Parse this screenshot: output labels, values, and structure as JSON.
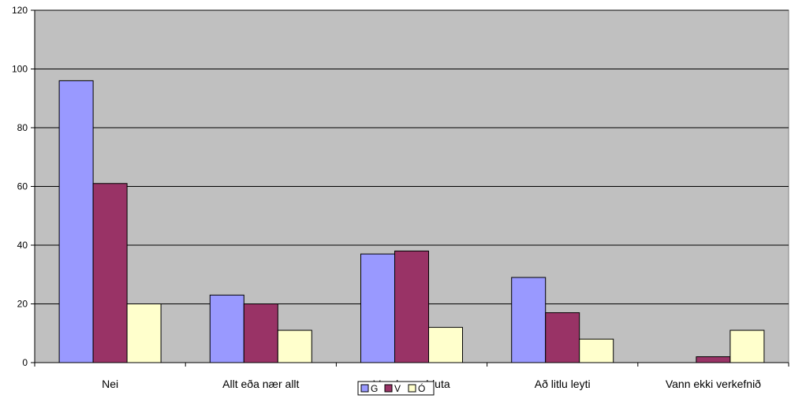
{
  "chart_data": {
    "type": "bar",
    "categories": [
      "Nei",
      "Allt eða nær allt",
      "Verulegan hluta",
      "Að litlu leyti",
      "Vann ekki verkefnið"
    ],
    "series": [
      {
        "name": "G",
        "values": [
          96,
          23,
          37,
          29,
          0
        ],
        "color": "#9999FF"
      },
      {
        "name": "V",
        "values": [
          61,
          20,
          38,
          17,
          2
        ],
        "color": "#993366"
      },
      {
        "name": "Ó",
        "values": [
          20,
          11,
          12,
          8,
          11
        ],
        "color": "#FFFFCC"
      }
    ],
    "y_ticks": [
      "0",
      "20",
      "40",
      "60",
      "80",
      "100",
      "120"
    ],
    "ylim": [
      0,
      120
    ],
    "grid": true,
    "plot_background": "#C0C0C0",
    "legend_position": "bottom-center"
  }
}
